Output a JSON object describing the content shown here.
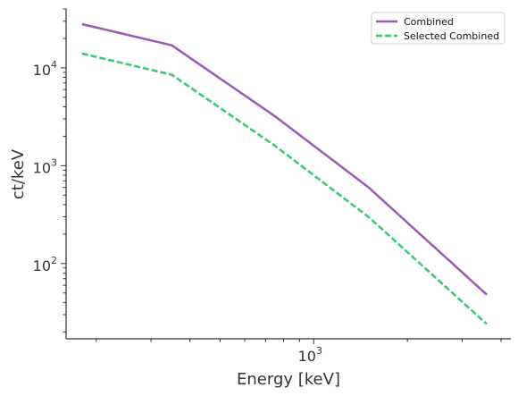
{
  "chart_data": {
    "type": "line",
    "xlabel": "Energy [keV]",
    "ylabel": "ct/keV",
    "xscale": "log",
    "yscale": "log",
    "xlim": [
      160,
      4300
    ],
    "ylim": [
      17,
      40000
    ],
    "x_major_ticks": [
      {
        "value": 1000,
        "base": "10",
        "exp": "3"
      }
    ],
    "y_major_ticks": [
      {
        "value": 100,
        "base": "10",
        "exp": "2"
      },
      {
        "value": 1000,
        "base": "10",
        "exp": "3"
      },
      {
        "value": 10000,
        "base": "10",
        "exp": "4"
      }
    ],
    "grid": false,
    "legend_position": "top-right",
    "series": [
      {
        "name": "Combined",
        "color": "#9b59b6",
        "dash": "solid",
        "x": [
          180,
          350,
          750,
          1500,
          3600
        ],
        "y": [
          28000,
          17000,
          3200,
          600,
          48
        ]
      },
      {
        "name": "Selected Combined",
        "color": "#2ecc71",
        "dash": "dashed",
        "x": [
          180,
          350,
          750,
          1500,
          3600
        ],
        "y": [
          14000,
          8500,
          1600,
          300,
          24
        ]
      }
    ]
  }
}
